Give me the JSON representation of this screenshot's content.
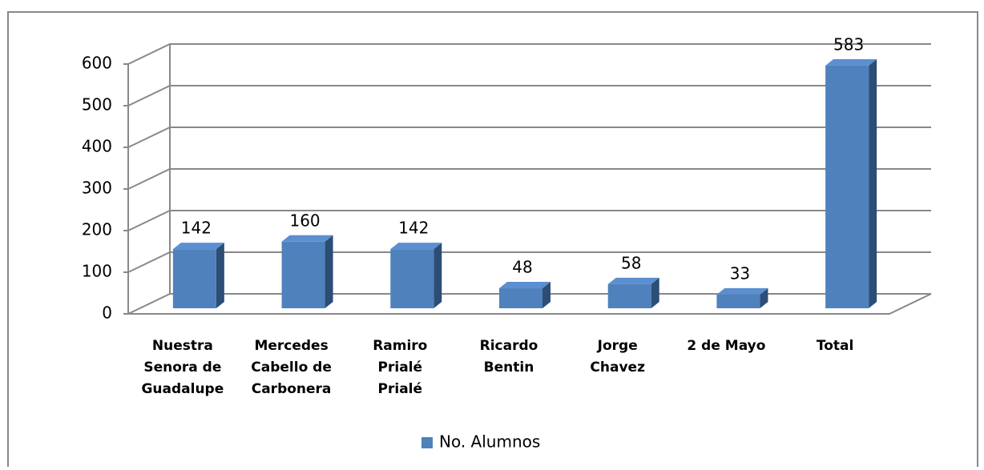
{
  "chart_data": {
    "type": "bar3d",
    "categories": [
      [
        "Nuestra",
        "Senora de",
        "Guadalupe"
      ],
      [
        "Mercedes",
        "Cabello de",
        "Carbonera"
      ],
      [
        "Ramiro",
        "Prialé",
        "Prialé"
      ],
      [
        "Ricardo",
        "Bentin"
      ],
      [
        "Jorge",
        "Chavez"
      ],
      [
        "2 de Mayo"
      ],
      [
        "Total"
      ]
    ],
    "series": [
      {
        "name": "No. Alumnos",
        "color": "#4f81bd",
        "values": [
          142,
          160,
          142,
          48,
          58,
          33,
          583
        ]
      }
    ],
    "ylim": [
      0,
      600
    ],
    "yticks": [
      0,
      100,
      200,
      300,
      400,
      500,
      600
    ],
    "grid": true,
    "legend": "bottom"
  }
}
